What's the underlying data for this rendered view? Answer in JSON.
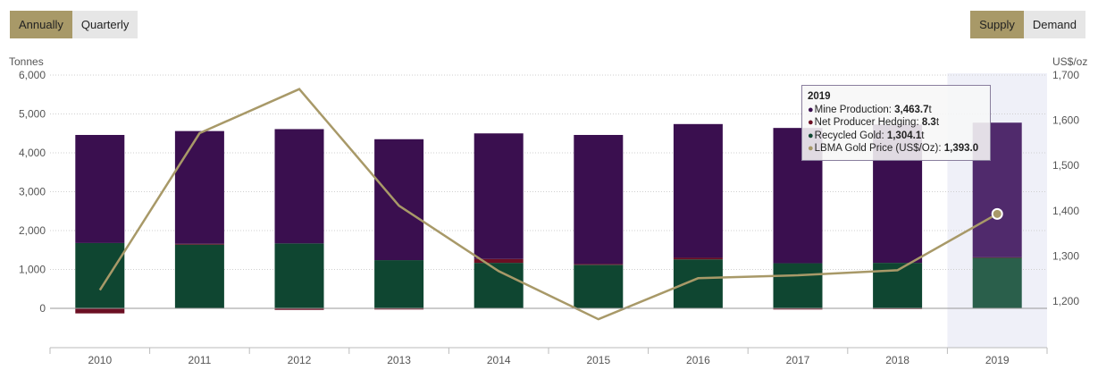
{
  "controls": {
    "period": {
      "options": [
        "Annually",
        "Quarterly"
      ],
      "selected": "Annually"
    },
    "view": {
      "options": [
        "Supply",
        "Demand"
      ],
      "selected": "Supply"
    }
  },
  "colors": {
    "mine": "#3a0f4f",
    "mine_highlight": "#502a6c",
    "hedging": "#6b0f23",
    "recycled": "#0f4631",
    "recycled_highlight": "#2a5f4b",
    "price_line": "#a89968",
    "highlight_band": "#eff0f8"
  },
  "chart_data": {
    "type": "bar",
    "stacked": true,
    "categories": [
      "2010",
      "2011",
      "2012",
      "2013",
      "2014",
      "2015",
      "2016",
      "2017",
      "2018",
      "2019"
    ],
    "series": [
      {
        "name": "Mine Production",
        "axis": "left",
        "values": [
          2780,
          2900,
          2940,
          3110,
          3230,
          3320,
          3440,
          3480,
          3560,
          3463.7
        ]
      },
      {
        "name": "Net Producer Hedging",
        "axis": "left",
        "values": [
          -130,
          20,
          -40,
          -30,
          100,
          20,
          40,
          -30,
          -20,
          8.3
        ]
      },
      {
        "name": "Recycled Gold",
        "axis": "left",
        "values": [
          1680,
          1640,
          1670,
          1240,
          1170,
          1120,
          1260,
          1160,
          1170,
          1304.1
        ]
      },
      {
        "name": "LBMA Gold Price (US$/Oz)",
        "type": "line",
        "axis": "right",
        "values": [
          1224.5,
          1571.5,
          1669.0,
          1411.2,
          1266.4,
          1160.1,
          1250.8,
          1257.2,
          1268.5,
          1393.0
        ]
      }
    ],
    "ylabel_left": "Tonnes",
    "ylabel_right": "US$/oz",
    "ylim_left": [
      -1000,
      6000
    ],
    "yticks_left": [
      0,
      1000,
      2000,
      3000,
      4000,
      5000,
      6000
    ],
    "ytick_labels_left": [
      "0",
      "1,000",
      "2,000",
      "3,000",
      "4,000",
      "5,000",
      "6,000"
    ],
    "ylim_right": [
      1100,
      1700
    ],
    "yticks_right": [
      1200,
      1300,
      1400,
      1500,
      1600,
      1700
    ],
    "ytick_labels_right": [
      "1,200",
      "1,300",
      "1,400",
      "1,500",
      "1,600",
      "1,700"
    ],
    "grid": true,
    "highlighted_category": "2019"
  },
  "tooltip": {
    "title": "2019",
    "rows": [
      {
        "label": "Mine Production: ",
        "value": "3,463.7",
        "unit": "t",
        "color": "#3a0f4f"
      },
      {
        "label": "Net Producer Hedging: ",
        "value": "8.3",
        "unit": "t",
        "color": "#6b0f23"
      },
      {
        "label": "Recycled Gold: ",
        "value": "1,304.1",
        "unit": "t",
        "color": "#0f4631"
      },
      {
        "label": "LBMA Gold Price (US$/Oz): ",
        "value": "1,393.0",
        "unit": "",
        "color": "#a89968"
      }
    ]
  }
}
